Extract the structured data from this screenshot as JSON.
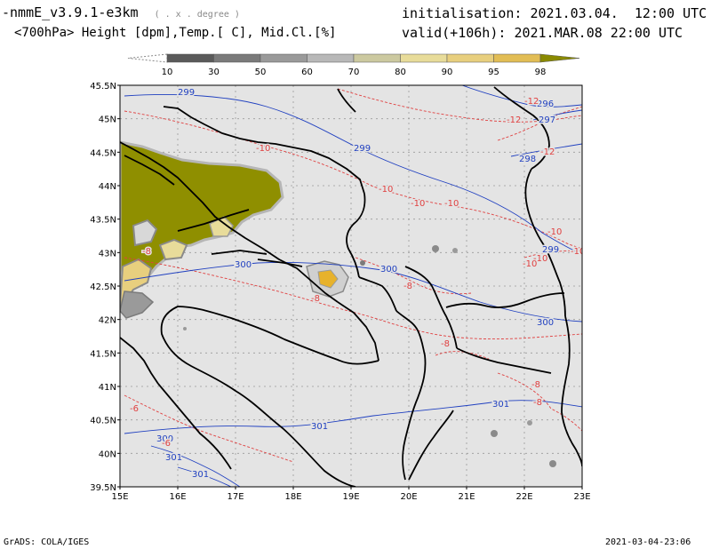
{
  "header": {
    "model": "-nmmE_v3.9.1-e3km",
    "coords_note": "( . x . degree )",
    "subtitle": "<700hPa> Height [dpm],Temp.[ C], Mid.Cl.[%]",
    "init_label": "initialisation:",
    "init_value": "2021.03.04.  12:00 UTC",
    "valid_label": "valid(+106h):",
    "valid_value": "2021.MAR.08 22:00 UTC"
  },
  "colorbar": {
    "labels": [
      "10",
      "30",
      "50",
      "60",
      "70",
      "80",
      "90",
      "95",
      "98"
    ],
    "colors": [
      "#5a5a5a",
      "#7a7a7a",
      "#9a9a9a",
      "#b8b8b8",
      "#ccc9a0",
      "#e8dc9a",
      "#e8cf7e",
      "#e2bd55",
      "#e7b22c",
      "#8a8a00"
    ]
  },
  "map": {
    "background": "#e4e4e4",
    "lat_labels": [
      "45.5N",
      "45N",
      "44.5N",
      "44N",
      "43.5N",
      "43N",
      "42.5N",
      "42N",
      "41.5N",
      "41N",
      "40.5N",
      "40N",
      "39.5N"
    ],
    "lon_labels": [
      "15E",
      "16E",
      "17E",
      "18E",
      "19E",
      "20E",
      "21E",
      "22E",
      "23E"
    ],
    "height_contours": [
      {
        "label": "299",
        "color": "#2040c0"
      },
      {
        "label": "296",
        "color": "#2040c0"
      },
      {
        "label": "297",
        "color": "#2040c0"
      },
      {
        "label": "298",
        "color": "#2040c0"
      },
      {
        "label": "300",
        "color": "#2040c0"
      },
      {
        "label": "301",
        "color": "#2040c0"
      }
    ],
    "temp_contours": [
      {
        "label": "-12",
        "color": "#e04040"
      },
      {
        "label": "-10",
        "color": "#e04040"
      },
      {
        "label": "-8",
        "color": "#e04040"
      },
      {
        "label": "-6",
        "color": "#e04040"
      }
    ],
    "cloud_color": "#8f8f00"
  },
  "footer": {
    "left": "GrADS: COLA/IGES",
    "right": "2021-03-04-23:06"
  }
}
